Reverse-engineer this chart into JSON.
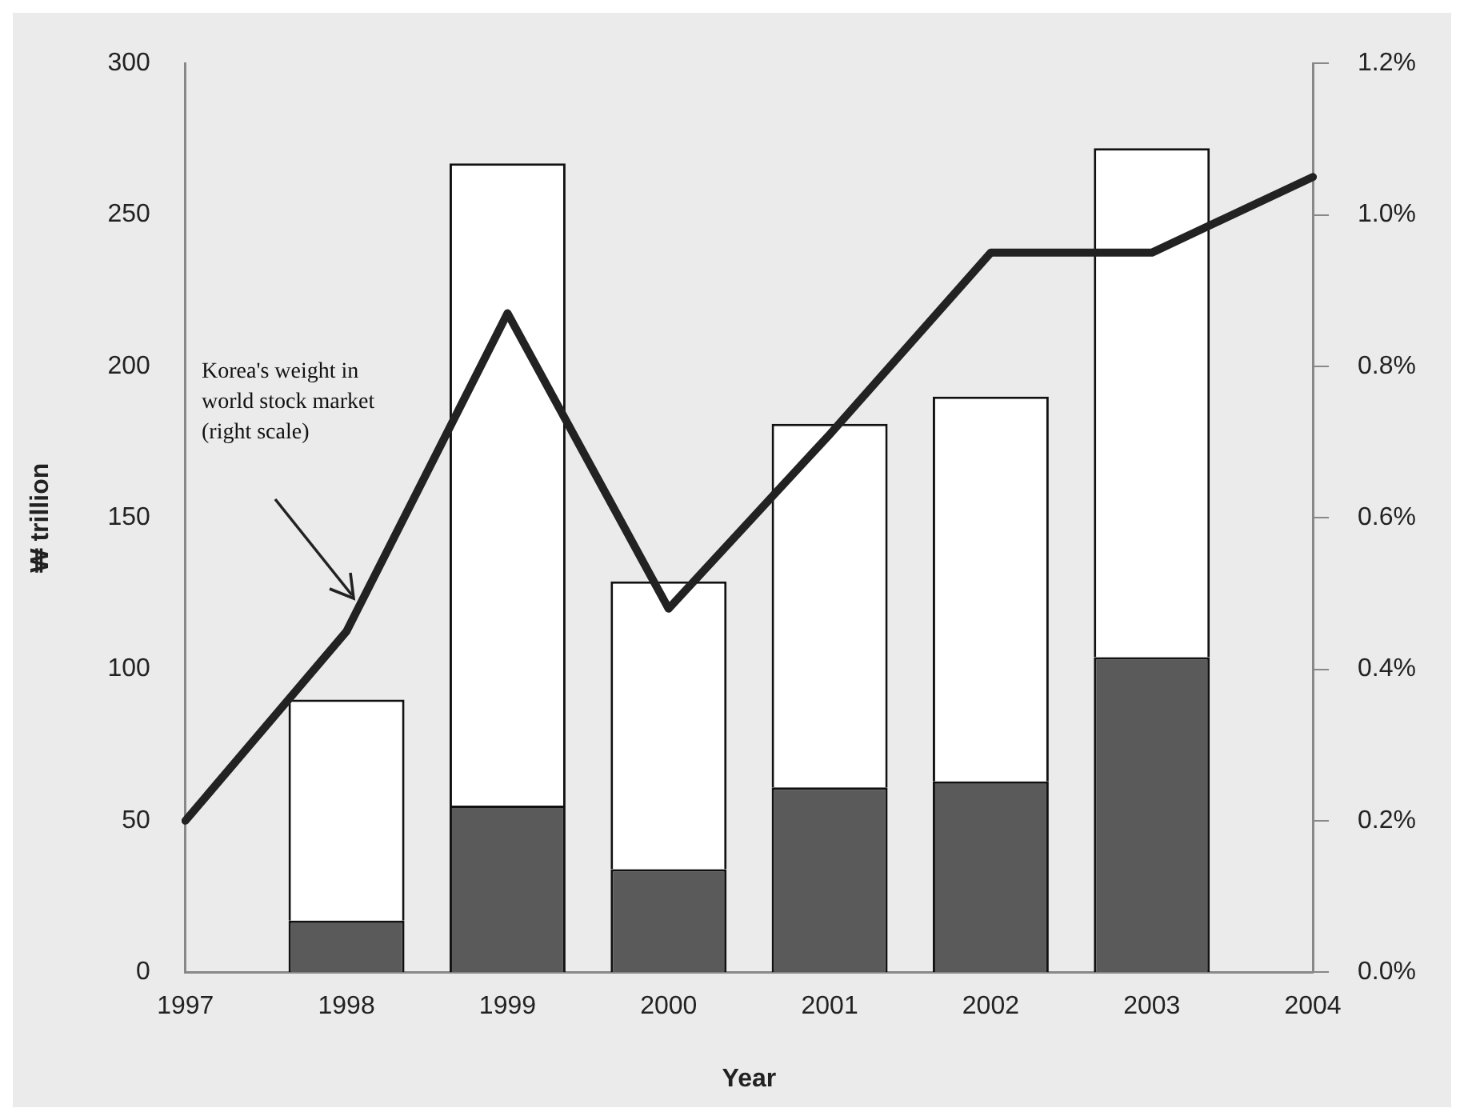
{
  "chart_data": {
    "type": "bar",
    "xlabel": "Year",
    "ylabel": "₩ trillion",
    "categories": [
      "1997",
      "1998",
      "1999",
      "2000",
      "2001",
      "2002",
      "2003",
      "2004"
    ],
    "stacked": true,
    "grid": false,
    "legend": false,
    "marker": "none",
    "series": [
      {
        "color": "#5a5a5a",
        "values": [
          null,
          17,
          55,
          34,
          61,
          63,
          104,
          null
        ]
      },
      {
        "color": "#ffffff",
        "values": [
          null,
          73,
          212,
          95,
          120,
          127,
          168,
          null
        ]
      },
      {
        "type": "line",
        "axis": "y2",
        "color": "#222222",
        "values": [
          0.2,
          0.45,
          0.87,
          0.48,
          0.71,
          0.95,
          0.95,
          1.05
        ]
      }
    ],
    "ylim": [
      0,
      300
    ],
    "yticks": [
      0,
      50,
      100,
      150,
      200,
      250,
      300
    ],
    "y2lim": [
      0,
      1.2
    ],
    "y2ticks": [
      {
        "value": 0,
        "label": "0.0%"
      },
      {
        "value": 0.2,
        "label": "0.2%"
      },
      {
        "value": 0.4,
        "label": "0.4%"
      },
      {
        "value": 0.6,
        "label": "0.6%"
      },
      {
        "value": 0.8,
        "label": "0.8%"
      },
      {
        "value": 1.0,
        "label": "1.0%"
      },
      {
        "value": 1.2,
        "label": "1.2%"
      }
    ],
    "annotations": [
      "Korea's weight in world stock market (right scale)"
    ]
  }
}
